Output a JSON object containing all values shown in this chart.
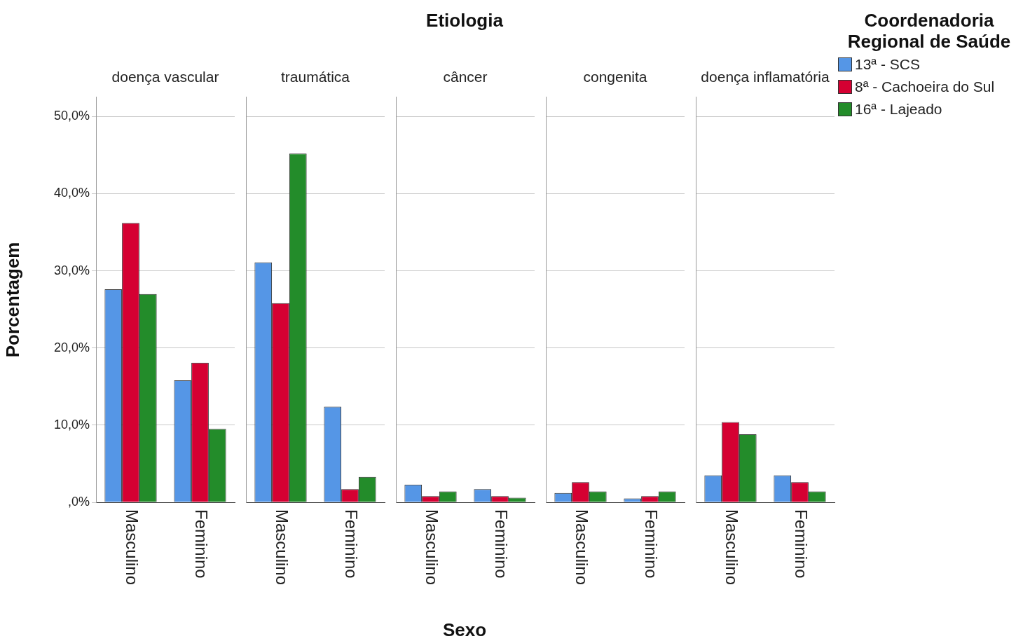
{
  "chart_data": [
    {
      "type": "bar",
      "title": "doença vascular",
      "categories": [
        "Masculino",
        "Feminino"
      ],
      "ylabel": "Porcentagem",
      "legend": "right",
      "legend_title": "Coordenadoria Regional de Saúde",
      "grid": "y",
      "ylim": [
        0,
        52.5
      ],
      "yticks": [
        {
          "value": 0,
          "label": ",0%"
        },
        {
          "value": 10,
          "label": "10,0%"
        },
        {
          "value": 20,
          "label": "20,0%"
        },
        {
          "value": 30,
          "label": "30,0%"
        },
        {
          "value": 40,
          "label": "40,0%"
        },
        {
          "value": 50,
          "label": "50,0%"
        }
      ],
      "series": [
        {
          "name": "13ª - SCS",
          "color": "#5596e6",
          "values": [
            27.6,
            15.8
          ]
        },
        {
          "name": "8ª - Cachoeira do Sul",
          "color": "#d50032",
          "values": [
            36.2,
            18.1
          ]
        },
        {
          "name": "16ª - Lajeado",
          "color": "#238c2a",
          "values": [
            27.0,
            9.5
          ]
        }
      ]
    },
    {
      "type": "bar",
      "title": "traumática",
      "categories": [
        "Masculino",
        "Feminino"
      ],
      "grid": "y",
      "tick_labels": "x",
      "ylim": [
        0,
        52.5
      ],
      "yticks": [
        0,
        10,
        20,
        30,
        40,
        50
      ],
      "series": [
        {
          "color": "#5596e6",
          "values": [
            31.1,
            12.4
          ]
        },
        {
          "color": "#d50032",
          "values": [
            25.8,
            1.7
          ]
        },
        {
          "color": "#238c2a",
          "values": [
            45.2,
            3.3
          ]
        }
      ]
    },
    {
      "type": "bar",
      "title": "câncer",
      "categories": [
        "Masculino",
        "Feminino"
      ],
      "xlabel": "Sexo",
      "annotations": [
        "Etiologia"
      ],
      "grid": "y",
      "tick_labels": "x",
      "ylim": [
        0,
        52.5
      ],
      "yticks": [
        0,
        10,
        20,
        30,
        40,
        50
      ],
      "series": [
        {
          "color": "#5596e6",
          "values": [
            2.3,
            1.7
          ]
        },
        {
          "color": "#d50032",
          "values": [
            0.8,
            0.8
          ]
        },
        {
          "color": "#238c2a",
          "values": [
            1.4,
            0.6
          ]
        }
      ]
    },
    {
      "type": "bar",
      "title": "congenita",
      "categories": [
        "Masculino",
        "Feminino"
      ],
      "grid": "y",
      "tick_labels": "x",
      "ylim": [
        0,
        52.5
      ],
      "yticks": [
        0,
        10,
        20,
        30,
        40,
        50
      ],
      "series": [
        {
          "color": "#5596e6",
          "values": [
            1.2,
            0.5
          ]
        },
        {
          "color": "#d50032",
          "values": [
            2.6,
            0.8
          ]
        },
        {
          "color": "#238c2a",
          "values": [
            1.4,
            1.4
          ]
        }
      ]
    },
    {
      "type": "bar",
      "title": "doença inflamatória",
      "categories": [
        "Masculino",
        "Feminino"
      ],
      "grid": "y",
      "tick_labels": "x",
      "ylim": [
        0,
        52.5
      ],
      "yticks": [
        0,
        10,
        20,
        30,
        40,
        50
      ],
      "series": [
        {
          "color": "#5596e6",
          "values": [
            3.5,
            3.5
          ]
        },
        {
          "color": "#d50032",
          "values": [
            10.4,
            2.6
          ]
        },
        {
          "color": "#238c2a",
          "values": [
            8.8,
            1.4
          ]
        }
      ]
    }
  ]
}
